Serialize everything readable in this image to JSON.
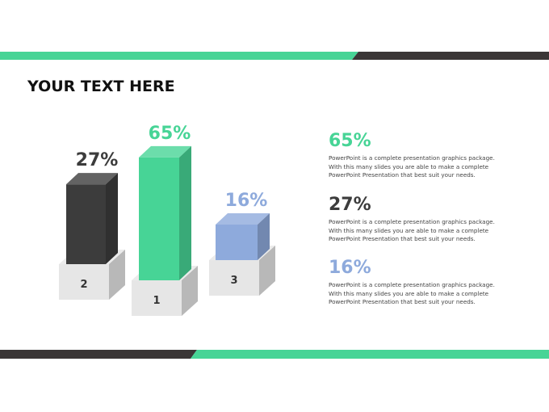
{
  "title": "YOUR TEXT HERE",
  "colors": {
    "green": "#47d496",
    "dark": "#3c3c3c",
    "blue": "#8eaadc",
    "podium": "#e6e6e6"
  },
  "chart_data": {
    "type": "bar",
    "style": "3d podium",
    "categories": [
      "2",
      "1",
      "3"
    ],
    "values": [
      27,
      65,
      16
    ],
    "labels": [
      "27%",
      "65%",
      "16%"
    ],
    "colors": [
      "#3c3c3c",
      "#47d496",
      "#8eaadc"
    ]
  },
  "items": [
    {
      "value": "65%",
      "color": "#47d496",
      "text": "PowerPoint is a complete presentation graphics package. With this many slides you are able to make a complete PowerPoint Presentation that best suit your needs."
    },
    {
      "value": "27%",
      "color": "#3c3c3c",
      "text": "PowerPoint is a complete presentation graphics package. With this many slides you are able to make a complete PowerPoint Presentation that best suit your needs."
    },
    {
      "value": "16%",
      "color": "#8eaadc",
      "text": "PowerPoint is a complete presentation graphics package. With this many slides you are able to make a complete PowerPoint Presentation that best suit your needs."
    }
  ]
}
